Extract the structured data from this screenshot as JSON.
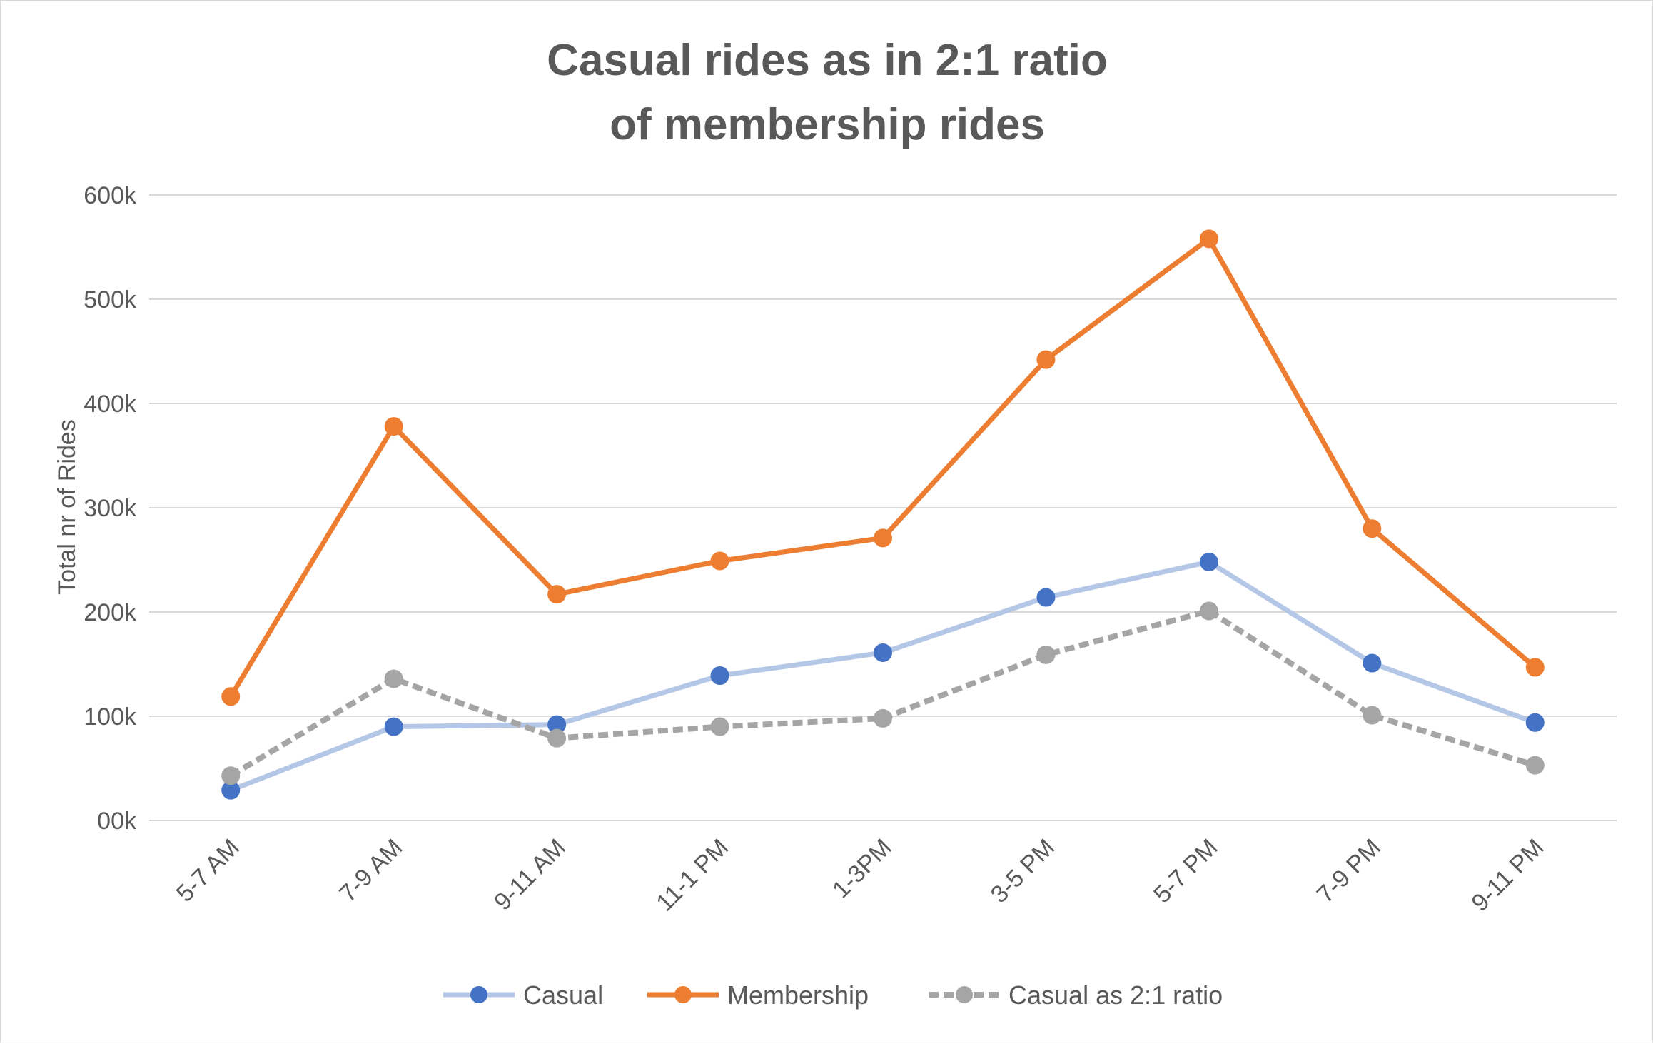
{
  "chart_data": {
    "type": "line",
    "title_lines": [
      "Casual rides as in 2:1 ratio",
      "of membership rides"
    ],
    "xlabel": "",
    "ylabel": "Total nr of Rides",
    "categories": [
      "5-7 AM",
      "7-9 AM",
      "9-11 AM",
      "11-1 PM",
      "1-3PM",
      "3-5 PM",
      "5-7 PM",
      "7-9 PM",
      "9-11 PM"
    ],
    "y_ticks": [
      "00k",
      "100k",
      "200k",
      "300k",
      "400k",
      "500k",
      "600k"
    ],
    "ylim": [
      0,
      600000
    ],
    "grid": true,
    "legend_position": "bottom",
    "series": [
      {
        "name": "Casual",
        "values": [
          29000,
          90000,
          92000,
          139000,
          161000,
          214000,
          248000,
          151000,
          94000
        ],
        "line_color": "#b4c7e7",
        "marker_color": "#4472c4",
        "dashed": false
      },
      {
        "name": "Membership",
        "values": [
          119000,
          378000,
          217000,
          249000,
          271000,
          442000,
          558000,
          280000,
          147000
        ],
        "line_color": "#ed7d31",
        "marker_color": "#ed7d31",
        "dashed": false
      },
      {
        "name": "Casual as 2:1 ratio",
        "values": [
          43000,
          136000,
          79000,
          90000,
          98000,
          159000,
          201000,
          101000,
          53000
        ],
        "line_color": "#a5a5a5",
        "marker_color": "#a5a5a5",
        "dashed": true
      }
    ]
  }
}
